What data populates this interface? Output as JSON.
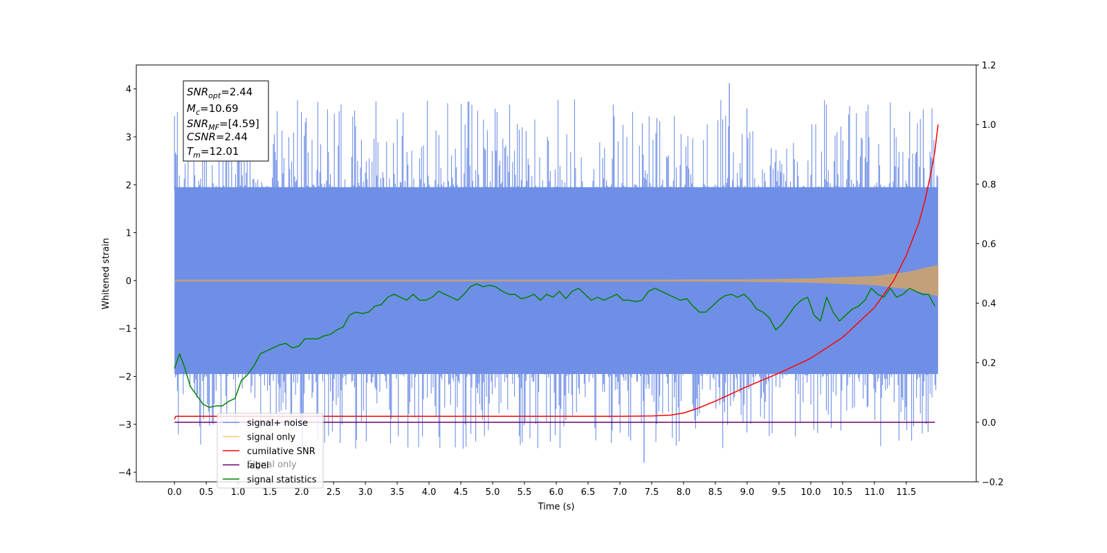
{
  "chart_data": {
    "type": "line",
    "xlabel": "Time (s)",
    "ylabel": "Whitened strain",
    "xlim": [
      -0.6,
      12.6
    ],
    "ylim": [
      -4.2,
      4.5
    ],
    "y2lim": [
      -0.2,
      1.2
    ],
    "xticks": [
      "0.0",
      "0.5",
      "1.0",
      "1.5",
      "2.0",
      "2.5",
      "3.0",
      "3.5",
      "4.0",
      "4.5",
      "5.0",
      "5.5",
      "6.0",
      "6.5",
      "7.0",
      "7.5",
      "8.0",
      "8.5",
      "9.0",
      "9.5",
      "10.0",
      "10.5",
      "11.0",
      "11.5"
    ],
    "yticks": [
      "4",
      "3",
      "2",
      "1",
      "0",
      "−1",
      "−2",
      "−3",
      "−4"
    ],
    "y2ticks": [
      "1.2",
      "1.0",
      "0.8",
      "0.6",
      "0.4",
      "0.2",
      "0.0",
      "−0.2"
    ],
    "grid": false,
    "legend_position": "lower-left",
    "legend": [
      "signal+ noise",
      "signal only",
      "cumilative SNR",
      "label",
      "signal statistics"
    ],
    "legend_occluded_text": "Signal only",
    "annotation": {
      "snr_opt": {
        "sym": "SNR",
        "sub": "opt",
        "value": "=2.44"
      },
      "mc": {
        "sym": "M",
        "sub": "c",
        "value": "=10.69"
      },
      "snr_mf": {
        "sym": "SNR",
        "sub": "MF",
        "value": "=[4.59]"
      },
      "csnr": {
        "sym": "CSNR",
        "value": "=2.44"
      },
      "tm": {
        "sym": "T",
        "sub": "m",
        "value": "=12.01"
      }
    },
    "series": [
      {
        "name": "signal+ noise",
        "axis": "left",
        "color": "#6f8fe6",
        "t_range": [
          0,
          12.0
        ],
        "band_upper": 1.95,
        "band_lower": -1.95,
        "peak_max": 4.12,
        "peak_min": -3.8
      },
      {
        "name": "signal only",
        "axis": "left",
        "color": "#c4a07a",
        "envelope": {
          "t": [
            0,
            7.0,
            9.0,
            10.0,
            11.0,
            11.5,
            12.0
          ],
          "amp": [
            0.0,
            0.01,
            0.02,
            0.04,
            0.09,
            0.17,
            0.32
          ]
        }
      },
      {
        "name": "cumilative SNR",
        "axis": "right",
        "color": "#ff0000",
        "x": [
          0.0,
          0.02,
          3.0,
          6.0,
          7.0,
          7.5,
          7.8,
          8.0,
          8.2,
          8.5,
          9.0,
          9.5,
          10.0,
          10.5,
          11.0,
          11.3,
          11.5,
          11.7,
          11.8,
          11.9,
          11.95,
          12.0
        ],
        "y": [
          0.01,
          0.02,
          0.02,
          0.02,
          0.02,
          0.021,
          0.024,
          0.031,
          0.045,
          0.071,
          0.12,
          0.165,
          0.215,
          0.285,
          0.385,
          0.475,
          0.56,
          0.67,
          0.75,
          0.85,
          0.91,
          1.0
        ]
      },
      {
        "name": "label",
        "axis": "right",
        "color": "#660066",
        "x": [
          0.0,
          11.95
        ],
        "y": [
          0.0,
          0.0
        ]
      },
      {
        "name": "signal statistics",
        "axis": "right",
        "color": "#008000",
        "x": [
          0.0,
          0.08,
          0.15,
          0.25,
          0.35,
          0.45,
          0.55,
          0.65,
          0.75,
          0.85,
          0.95,
          1.05,
          1.15,
          1.25,
          1.35,
          1.45,
          1.55,
          1.65,
          1.75,
          1.85,
          1.95,
          2.05,
          2.15,
          2.25,
          2.35,
          2.45,
          2.55,
          2.65,
          2.75,
          2.85,
          2.95,
          3.05,
          3.15,
          3.25,
          3.35,
          3.45,
          3.55,
          3.65,
          3.75,
          3.85,
          3.95,
          4.05,
          4.15,
          4.25,
          4.35,
          4.45,
          4.55,
          4.65,
          4.75,
          4.85,
          4.95,
          5.05,
          5.15,
          5.25,
          5.35,
          5.45,
          5.55,
          5.65,
          5.75,
          5.85,
          5.95,
          6.05,
          6.15,
          6.25,
          6.35,
          6.45,
          6.55,
          6.65,
          6.75,
          6.85,
          6.95,
          7.05,
          7.15,
          7.25,
          7.35,
          7.45,
          7.55,
          7.65,
          7.75,
          7.85,
          7.95,
          8.05,
          8.15,
          8.25,
          8.35,
          8.45,
          8.55,
          8.65,
          8.75,
          8.85,
          8.95,
          9.05,
          9.15,
          9.25,
          9.35,
          9.45,
          9.55,
          9.65,
          9.75,
          9.85,
          9.95,
          10.05,
          10.15,
          10.25,
          10.35,
          10.45,
          10.55,
          10.65,
          10.75,
          10.85,
          10.95,
          11.05,
          11.15,
          11.25,
          11.35,
          11.45,
          11.55,
          11.65,
          11.75,
          11.85,
          11.95
        ],
        "y": [
          0.18,
          0.23,
          0.19,
          0.12,
          0.09,
          0.06,
          0.05,
          0.055,
          0.055,
          0.07,
          0.08,
          0.14,
          0.16,
          0.19,
          0.23,
          0.24,
          0.25,
          0.26,
          0.265,
          0.25,
          0.255,
          0.28,
          0.28,
          0.28,
          0.29,
          0.295,
          0.31,
          0.32,
          0.36,
          0.37,
          0.365,
          0.37,
          0.39,
          0.395,
          0.42,
          0.43,
          0.42,
          0.41,
          0.43,
          0.41,
          0.41,
          0.42,
          0.44,
          0.43,
          0.42,
          0.41,
          0.43,
          0.455,
          0.465,
          0.455,
          0.46,
          0.455,
          0.44,
          0.43,
          0.43,
          0.415,
          0.42,
          0.43,
          0.41,
          0.43,
          0.42,
          0.44,
          0.415,
          0.44,
          0.45,
          0.43,
          0.41,
          0.42,
          0.41,
          0.42,
          0.43,
          0.41,
          0.41,
          0.405,
          0.41,
          0.44,
          0.45,
          0.44,
          0.43,
          0.42,
          0.41,
          0.415,
          0.39,
          0.37,
          0.37,
          0.39,
          0.41,
          0.425,
          0.43,
          0.42,
          0.43,
          0.41,
          0.38,
          0.37,
          0.35,
          0.31,
          0.33,
          0.36,
          0.39,
          0.41,
          0.42,
          0.36,
          0.34,
          0.42,
          0.37,
          0.34,
          0.36,
          0.38,
          0.39,
          0.41,
          0.45,
          0.43,
          0.42,
          0.45,
          0.42,
          0.43,
          0.45,
          0.44,
          0.43,
          0.43,
          0.39
        ]
      }
    ]
  }
}
